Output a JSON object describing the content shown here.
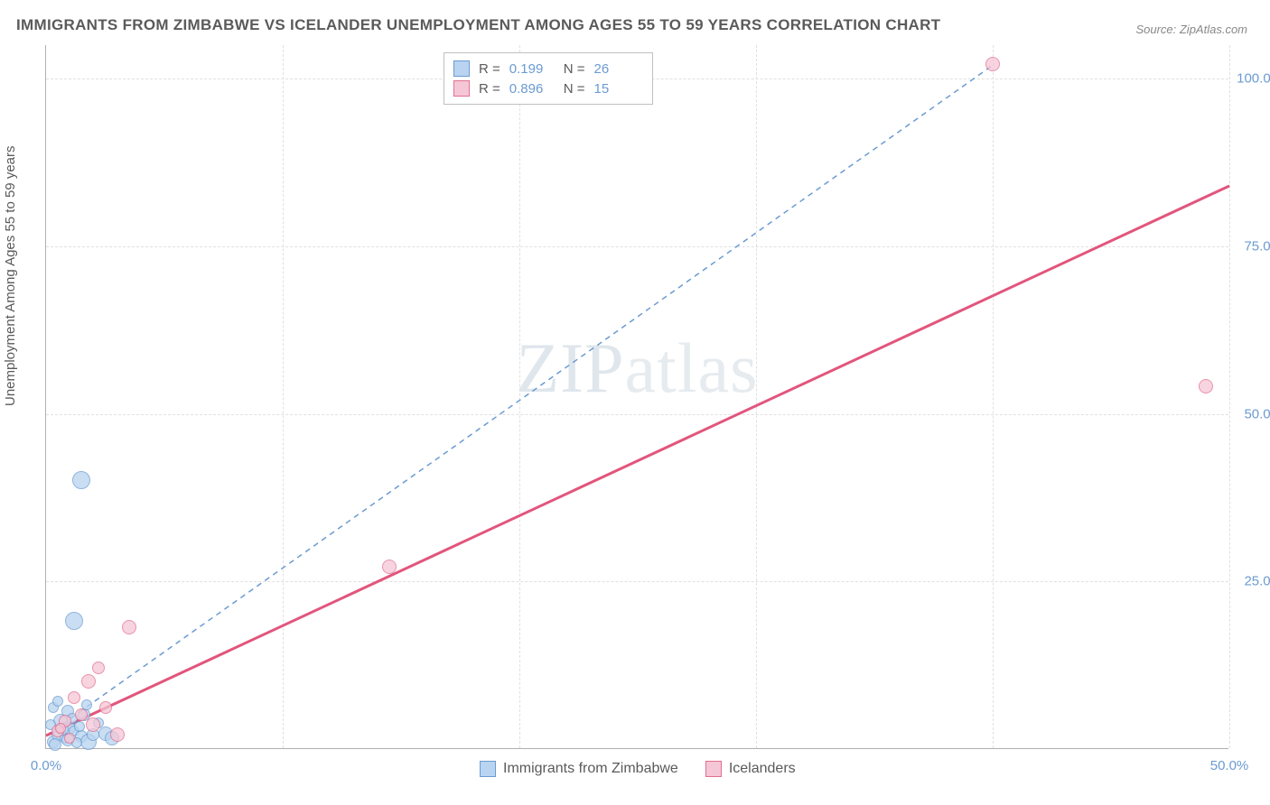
{
  "title": "IMMIGRANTS FROM ZIMBABWE VS ICELANDER UNEMPLOYMENT AMONG AGES 55 TO 59 YEARS CORRELATION CHART",
  "source": "Source: ZipAtlas.com",
  "y_axis_label": "Unemployment Among Ages 55 to 59 years",
  "watermark": {
    "part1": "ZIP",
    "part2": "atlas"
  },
  "chart": {
    "type": "scatter",
    "xlim": [
      0,
      50
    ],
    "ylim": [
      0,
      105
    ],
    "x_ticks": [
      {
        "value": 0,
        "label": "0.0%"
      },
      {
        "value": 50,
        "label": "50.0%"
      }
    ],
    "y_ticks": [
      {
        "value": 25,
        "label": "25.0%"
      },
      {
        "value": 50,
        "label": "50.0%"
      },
      {
        "value": 75,
        "label": "75.0%"
      },
      {
        "value": 100,
        "label": "100.0%"
      }
    ],
    "x_gridlines": [
      10,
      20,
      30,
      40,
      50
    ],
    "y_gridlines": [
      25,
      50,
      75,
      100
    ],
    "background_color": "#ffffff",
    "grid_color": "#e0e0e0",
    "axis_color": "#b0b0b0",
    "tick_label_color": "#6b9bd1",
    "series": [
      {
        "name": "Immigrants from Zimbabwe",
        "legend_label": "Immigrants from Zimbabwe",
        "marker_fill": "#b8d4f0",
        "marker_stroke": "#6b9bd1",
        "marker_opacity": 0.75,
        "marker_radius": 8,
        "line_color": "#6b9bd1",
        "line_style": "dashed",
        "line_width": 1.5,
        "R": "0.199",
        "N": "26",
        "points": [
          {
            "x": 0.3,
            "y": 1.0,
            "r": 7
          },
          {
            "x": 0.5,
            "y": 2.0,
            "r": 7
          },
          {
            "x": 0.4,
            "y": 0.5,
            "r": 7
          },
          {
            "x": 0.8,
            "y": 1.5,
            "r": 6
          },
          {
            "x": 1.0,
            "y": 3.0,
            "r": 7
          },
          {
            "x": 0.6,
            "y": 4.0,
            "r": 8
          },
          {
            "x": 1.2,
            "y": 2.5,
            "r": 6
          },
          {
            "x": 1.5,
            "y": 1.8,
            "r": 7
          },
          {
            "x": 1.8,
            "y": 1.0,
            "r": 9
          },
          {
            "x": 0.9,
            "y": 5.5,
            "r": 7
          },
          {
            "x": 0.2,
            "y": 3.5,
            "r": 6
          },
          {
            "x": 1.1,
            "y": 4.5,
            "r": 6
          },
          {
            "x": 0.7,
            "y": 2.8,
            "r": 7
          },
          {
            "x": 1.4,
            "y": 3.2,
            "r": 6
          },
          {
            "x": 2.0,
            "y": 2.0,
            "r": 7
          },
          {
            "x": 0.3,
            "y": 6.0,
            "r": 6
          },
          {
            "x": 1.6,
            "y": 5.0,
            "r": 7
          },
          {
            "x": 0.5,
            "y": 7.0,
            "r": 6
          },
          {
            "x": 2.2,
            "y": 3.8,
            "r": 6
          },
          {
            "x": 0.9,
            "y": 1.2,
            "r": 7
          },
          {
            "x": 1.3,
            "y": 0.8,
            "r": 6
          },
          {
            "x": 2.5,
            "y": 2.2,
            "r": 8
          },
          {
            "x": 1.7,
            "y": 6.5,
            "r": 6
          },
          {
            "x": 1.2,
            "y": 19.0,
            "r": 10
          },
          {
            "x": 1.5,
            "y": 40.0,
            "r": 10
          },
          {
            "x": 2.8,
            "y": 1.5,
            "r": 8
          }
        ],
        "trend_line": {
          "x1": 0,
          "y1": 2,
          "x2": 40,
          "y2": 102
        }
      },
      {
        "name": "Icelanders",
        "legend_label": "Icelanders",
        "marker_fill": "#f5c6d6",
        "marker_stroke": "#e2708f",
        "marker_opacity": 0.75,
        "marker_radius": 8,
        "line_color": "#e2557c",
        "line_style": "solid",
        "line_width": 3,
        "R": "0.896",
        "N": "15",
        "points": [
          {
            "x": 0.5,
            "y": 2.5,
            "r": 7
          },
          {
            "x": 0.8,
            "y": 4.0,
            "r": 7
          },
          {
            "x": 1.0,
            "y": 1.5,
            "r": 6
          },
          {
            "x": 1.5,
            "y": 5.0,
            "r": 7
          },
          {
            "x": 2.0,
            "y": 3.5,
            "r": 8
          },
          {
            "x": 1.2,
            "y": 7.5,
            "r": 7
          },
          {
            "x": 1.8,
            "y": 10.0,
            "r": 8
          },
          {
            "x": 2.5,
            "y": 6.0,
            "r": 7
          },
          {
            "x": 3.0,
            "y": 2.0,
            "r": 8
          },
          {
            "x": 0.6,
            "y": 3.0,
            "r": 6
          },
          {
            "x": 2.2,
            "y": 12.0,
            "r": 7
          },
          {
            "x": 3.5,
            "y": 18.0,
            "r": 8
          },
          {
            "x": 14.5,
            "y": 27.0,
            "r": 8
          },
          {
            "x": 40.0,
            "y": 102.0,
            "r": 8
          },
          {
            "x": 49.0,
            "y": 54.0,
            "r": 8
          }
        ],
        "trend_line": {
          "x1": 0,
          "y1": 2,
          "x2": 50,
          "y2": 84
        }
      }
    ]
  },
  "legend_top": {
    "r_label": "R  =",
    "n_label": "N  ="
  }
}
